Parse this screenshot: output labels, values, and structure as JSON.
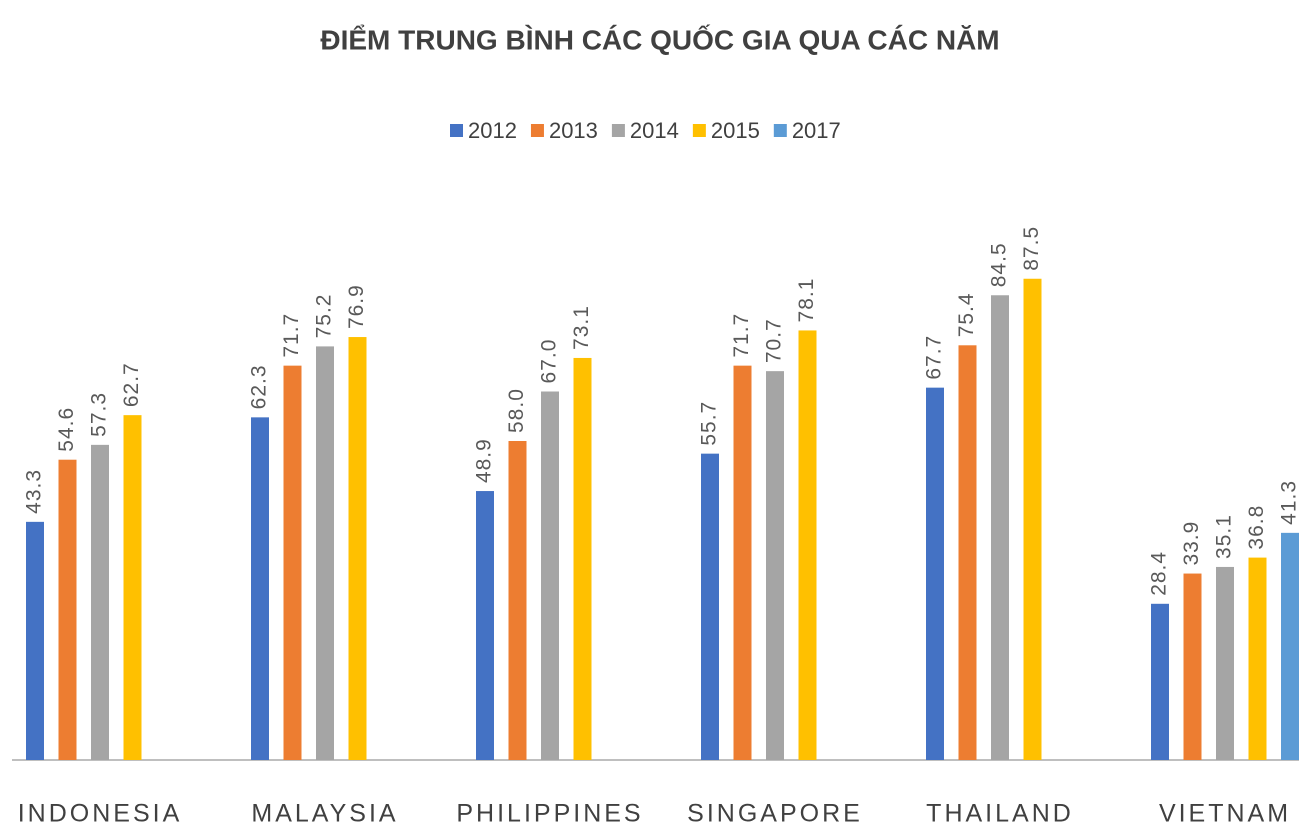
{
  "chart_data": {
    "type": "bar",
    "title": "ĐIỂM TRUNG BÌNH CÁC QUỐC GIA QUA CÁC NĂM",
    "categories": [
      "INDONESIA",
      "MALAYSIA",
      "PHILIPPINES",
      "SINGAPORE",
      "THAILAND",
      "VIETNAM"
    ],
    "series": [
      {
        "name": "2012",
        "color": "#4472c4",
        "values": [
          43.3,
          62.3,
          48.9,
          55.7,
          67.7,
          28.4
        ],
        "value_labels": [
          "43.3",
          "62.3",
          "48.9",
          "55.7",
          "67.7",
          "28.4"
        ]
      },
      {
        "name": "2013",
        "color": "#ed7d31",
        "values": [
          54.6,
          71.7,
          58.0,
          71.7,
          75.4,
          33.9
        ],
        "value_labels": [
          "54.6",
          "71.7",
          "58.0",
          "71.7",
          "75.4",
          "33.9"
        ]
      },
      {
        "name": "2014",
        "color": "#a5a5a5",
        "values": [
          57.3,
          75.2,
          67.0,
          70.7,
          84.5,
          35.1
        ],
        "value_labels": [
          "57.3",
          "75.2",
          "67.0",
          "70.7",
          "84.5",
          "35.1"
        ]
      },
      {
        "name": "2015",
        "color": "#ffc000",
        "values": [
          62.7,
          76.9,
          73.1,
          78.1,
          87.5,
          36.8
        ],
        "value_labels": [
          "62.7",
          "76.9",
          "73.1",
          "78.1",
          "87.5",
          "36.8"
        ]
      },
      {
        "name": "2017",
        "color": "#5b9bd5",
        "values": [
          null,
          null,
          null,
          null,
          null,
          41.3
        ],
        "value_labels": [
          null,
          null,
          null,
          null,
          null,
          "41.3"
        ]
      }
    ],
    "ylim": [
      0,
      100
    ],
    "legend": "top"
  }
}
